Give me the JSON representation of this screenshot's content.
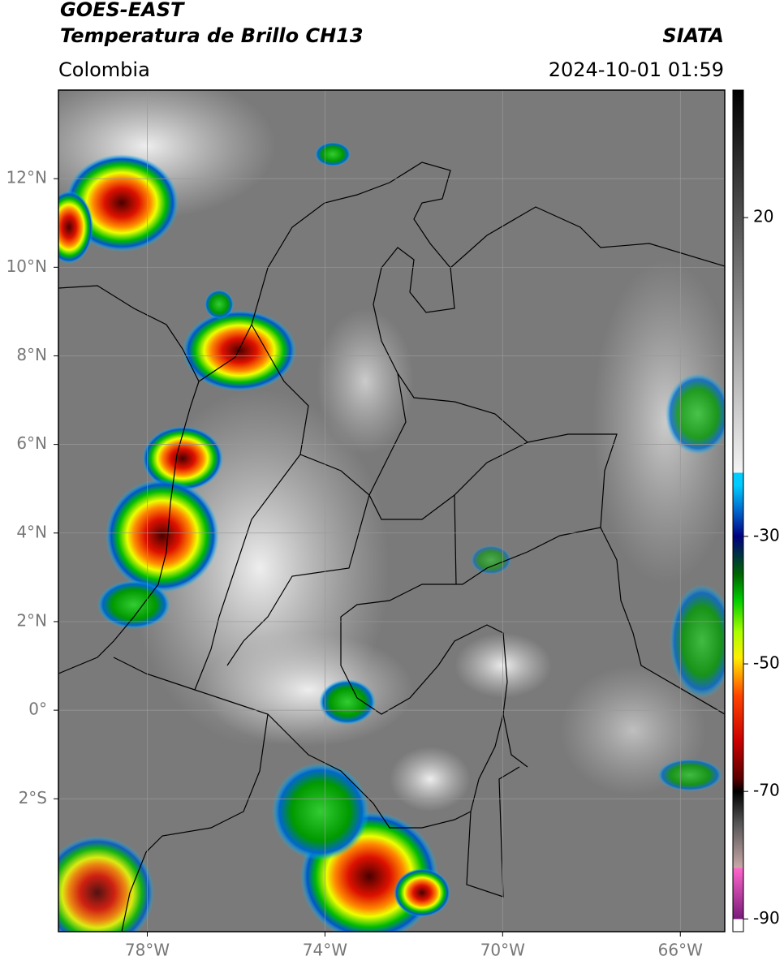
{
  "header": {
    "title_line1": "GOES-EAST",
    "title_line2": "Temperatura de Brillo CH13",
    "source": "SIATA",
    "region": "Colombia",
    "datetime": "2024-10-01 01:59"
  },
  "map": {
    "xlim": [
      -80,
      -65
    ],
    "ylim": [
      -5,
      14
    ],
    "grid": true,
    "xticks": [
      {
        "value": -78,
        "label": "78°W"
      },
      {
        "value": -74,
        "label": "74°W"
      },
      {
        "value": -70,
        "label": "70°W"
      },
      {
        "value": -66,
        "label": "66°W"
      }
    ],
    "yticks": [
      {
        "value": 12,
        "label": "12°N"
      },
      {
        "value": 10,
        "label": "10°N"
      },
      {
        "value": 8,
        "label": "8°N"
      },
      {
        "value": 6,
        "label": "6°N"
      },
      {
        "value": 4,
        "label": "4°N"
      },
      {
        "value": 2,
        "label": "2°N"
      },
      {
        "value": 0,
        "label": "0°"
      },
      {
        "value": -2,
        "label": "2°S"
      }
    ]
  },
  "colorbar": {
    "lim": [
      -92,
      40
    ],
    "ticks": [
      20,
      -30,
      -50,
      -70,
      -90
    ],
    "stops": [
      {
        "value": -92,
        "color": "#ffffff"
      },
      {
        "value": -90,
        "color": "#ffffff"
      },
      {
        "value": -90,
        "color": "#7a1a7a"
      },
      {
        "value": -82,
        "color": "#ff66cc"
      },
      {
        "value": -82,
        "color": "#c8a8a8"
      },
      {
        "value": -75,
        "color": "#555555"
      },
      {
        "value": -70,
        "color": "#000000"
      },
      {
        "value": -68,
        "color": "#5a0000"
      },
      {
        "value": -62,
        "color": "#cc0000"
      },
      {
        "value": -55,
        "color": "#ff4400"
      },
      {
        "value": -52,
        "color": "#ff9900"
      },
      {
        "value": -49,
        "color": "#ffee00"
      },
      {
        "value": -45,
        "color": "#aaff00"
      },
      {
        "value": -40,
        "color": "#00cc00"
      },
      {
        "value": -36,
        "color": "#006600"
      },
      {
        "value": -30,
        "color": "#000080"
      },
      {
        "value": -26,
        "color": "#0066cc"
      },
      {
        "value": -22,
        "color": "#00ccff"
      },
      {
        "value": -20,
        "color": "#00ccff"
      },
      {
        "value": -20,
        "color": "#f4f4f4"
      },
      {
        "value": 40,
        "color": "#000000"
      }
    ]
  }
}
